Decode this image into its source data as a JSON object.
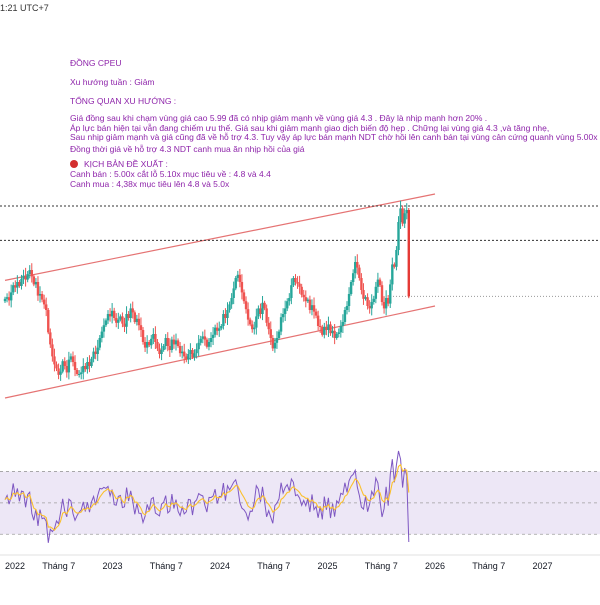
{
  "header": {
    "timestamp": "1:21 UTC+7"
  },
  "annotation": {
    "title": "ĐỒNG CPEU",
    "trend": "Xu hướng tuần : Giảm",
    "overview_title": "TỔNG QUAN XU HƯỚNG :",
    "overview_lines": [
      "Giá đồng sau khi chạm vùng giá cao 5.99 đã có nhịp giảm mạnh về vùng giá 4.3 . Đây là nhịp mạnh hơn 20% .",
      " Áp lực bán hiện tại vẫn đang chiếm ưu thế. Giá sau khi giảm mạnh giao dịch biến độ hẹp . Chững lại vùng giá 4.3 ,và tăng nhẹ,",
      " Sau nhịp giảm mạnh và giá cũng đã về hỗ trợ 4.3. Tuy vậy áp lực bán mạnh NDT chờ hồi lên canh bán tại vùng cản cứng quanh vùng 5.00x"
    ],
    "support_note": "Đồng thời giá về hỗ trợ 4.3 NDT canh mua ăn nhịp hồi của giá",
    "scenario_title": "KỊCH BẢN ĐỀ XUẤT :",
    "scenario_lines": [
      "Canh bán : 5.00x cắt lỗ 5.10x mục tiêu về : 4.8 và 4.4",
      "Canh mua : 4,38x  mục tiêu lên 4.8 và 5.0x"
    ]
  },
  "colors": {
    "up": "#26a69a",
    "down": "#ef5350",
    "channel": "#e57373",
    "rsi": "#7e57c2",
    "rsi_ma": "#fbc02d",
    "rsi_band": "#ede7f6",
    "text": "#8e24aa",
    "last_bar": "#e53935"
  },
  "chart_data": [
    {
      "type": "candlestick",
      "title": "",
      "xlabel": "",
      "ylabel": "",
      "x_ticks": [
        "2022",
        "Tháng 7",
        "2023",
        "Tháng 7",
        "2024",
        "Tháng 7",
        "2025",
        "Tháng 7",
        "2026",
        "Tháng 7",
        "2027"
      ],
      "x_range": [
        "2022-01",
        "2027-06"
      ],
      "y_range": [
        3.35,
        6.1
      ],
      "grid": false,
      "channel": {
        "upper": [
          [
            "2022-01",
            4.97
          ],
          [
            "2026-01",
            6.05
          ]
        ],
        "lower": [
          [
            "2022-01",
            3.5
          ],
          [
            "2026-01",
            4.65
          ]
        ]
      },
      "horizontal_levels": [
        5.9,
        5.47,
        4.77
      ],
      "candles": {
        "start": "2022-01",
        "interval": "week",
        "close": [
          4.74,
          4.76,
          4.72,
          4.82,
          4.91,
          4.88,
          4.95,
          4.9,
          4.99,
          5.03,
          4.98,
          5.05,
          5.1,
          5.02,
          4.92,
          4.95,
          4.78,
          4.8,
          4.73,
          4.67,
          4.6,
          4.32,
          4.17,
          4.02,
          3.92,
          3.87,
          3.79,
          3.83,
          3.96,
          3.9,
          3.82,
          3.98,
          4.02,
          3.95,
          3.85,
          3.8,
          3.8,
          3.82,
          3.9,
          3.86,
          3.95,
          3.9,
          3.99,
          4.08,
          4.05,
          4.13,
          4.25,
          4.33,
          4.41,
          4.47,
          4.55,
          4.52,
          4.59,
          4.5,
          4.44,
          4.48,
          4.52,
          4.43,
          4.39,
          4.55,
          4.5,
          4.62,
          4.57,
          4.45,
          4.49,
          4.41,
          4.35,
          4.2,
          4.13,
          4.2,
          4.16,
          4.24,
          4.3,
          4.2,
          4.12,
          4.05,
          4.1,
          4.15,
          4.25,
          4.15,
          4.1,
          4.23,
          4.17,
          4.22,
          4.15,
          4.06,
          4.08,
          4.02,
          3.98,
          4.05,
          4.1,
          4.01,
          4.06,
          4.11,
          4.19,
          4.24,
          4.27,
          4.23,
          4.14,
          4.2,
          4.25,
          4.29,
          4.38,
          4.34,
          4.37,
          4.4,
          4.55,
          4.5,
          4.6,
          4.67,
          4.75,
          4.87,
          5.0,
          5.04,
          4.95,
          4.82,
          4.71,
          4.61,
          4.48,
          4.42,
          4.36,
          4.38,
          4.52,
          4.62,
          4.55,
          4.69,
          4.62,
          4.44,
          4.36,
          4.25,
          4.12,
          4.19,
          4.25,
          4.33,
          4.51,
          4.55,
          4.62,
          4.71,
          4.75,
          4.91,
          5.0,
          4.95,
          4.93,
          4.89,
          4.79,
          4.76,
          4.71,
          4.73,
          4.6,
          4.66,
          4.58,
          4.53,
          4.4,
          4.39,
          4.29,
          4.39,
          4.35,
          4.42,
          4.31,
          4.34,
          4.25,
          4.3,
          4.32,
          4.4,
          4.45,
          4.6,
          4.65,
          4.8,
          4.95,
          5.06,
          5.2,
          5.13,
          5.0,
          4.85,
          4.74,
          4.76,
          4.65,
          4.62,
          4.7,
          4.74,
          4.89,
          4.98,
          4.91,
          4.7,
          4.62,
          4.75,
          4.68,
          4.92,
          5.17,
          5.14,
          5.35,
          5.7,
          5.87,
          5.68,
          5.81,
          5.85,
          4.77
        ]
      }
    },
    {
      "type": "line",
      "title": "",
      "xlabel": "",
      "ylabel": "",
      "y_range": [
        20,
        90
      ],
      "band": [
        30,
        70
      ],
      "levels": [
        70,
        50,
        30
      ],
      "series": [
        {
          "name": "",
          "values": [
            52.1,
            54.7,
            49.2,
            53.9,
            62.3,
            53.9,
            59.2,
            51.0,
            57.5,
            57.0,
            47.2,
            55.3,
            56.8,
            43.3,
            38.9,
            46.0,
            35.3,
            45.7,
            39.9,
            40.4,
            38.3,
            24.6,
            33.2,
            31.7,
            33.4,
            38.5,
            36.7,
            44.0,
            52.6,
            44.8,
            41.1,
            52.3,
            51.2,
            43.1,
            38.9,
            41.9,
            44.1,
            45.5,
            50.6,
            44.5,
            50.4,
            44.1,
            50.7,
            54.1,
            48.6,
            54.7,
            59.2,
            58.9,
            59.9,
            59.2,
            60.4,
            54.4,
            58.5,
            48.9,
            48.5,
            54.1,
            54.7,
            47.0,
            47.5,
            59.7,
            51.2,
            57.6,
            51.1,
            42.7,
            49.6,
            43.4,
            43.3,
            37.5,
            41.5,
            49.0,
            45.0,
            52.5,
            53.4,
            43.5,
            42.6,
            41.7,
            49.3,
            50.3,
            54.6,
            43.6,
            44.8,
            55.6,
            46.4,
            52.1,
            44.6,
            41.9,
            47.4,
            43.0,
            44.3,
            52.2,
            51.9,
            42.3,
            50.5,
            51.9,
            55.9,
            55.0,
            54.4,
            48.6,
            44.1,
            53.5,
            53.4,
            54.3,
            58.7,
            49.5,
            54.1,
            54.0,
            62.6,
            51.4,
            60.9,
            58.3,
            60.6,
            63.2,
            64.7,
            59.6,
            50.0,
            46.6,
            45.6,
            43.6,
            39.2,
            44.7,
            44.6,
            50.6,
            60.9,
            58.6,
            50.7,
            60.2,
            50.7,
            41.1,
            45.0,
            40.8,
            37.0,
            48.3,
            49.8,
            52.5,
            62.8,
            56.3,
            59.8,
            61.6,
            57.6,
            65.2,
            63.1,
            54.6,
            55.2,
            53.0,
            48.4,
            51.5,
            48.2,
            52.8,
            44.2,
            55.4,
            45.7,
            47.7,
            40.5,
            47.8,
            39.5,
            54.0,
            45.6,
            53.2,
            40.3,
            49.5,
            41.2,
            51.3,
            49.8,
            56.1,
            55.3,
            62.8,
            56.7,
            64.0,
            66.9,
            68.1,
            70.7,
            60.1,
            54.6,
            47.3,
            46.0,
            54.1,
            44.4,
            49.4,
            57.3,
            54.6,
            65.8,
            62.7,
            51.4,
            41.0,
            46.3,
            60.2,
            48.2,
            68.2,
            77.8,
            63.1,
            74.1,
            83.0,
            77.7,
            59.7,
            72.2,
            67.2,
            25.1
          ]
        },
        {
          "name": "",
          "values": [
            52.1,
            53.5,
            52.1,
            52.6,
            56.2,
            55.5,
            56.6,
            55.0,
            55.8,
            56.4,
            53.5,
            53.7,
            55.2,
            50.7,
            46.6,
            45.8,
            42.4,
            43.3,
            42.0,
            41.7,
            40.6,
            34.6,
            34.7,
            33.8,
            32.6,
            34.3,
            35.5,
            38.4,
            43.5,
            44.1,
            43.0,
            45.5,
            47.5,
            46.4,
            44.4,
            43.4,
            43.7,
            44.2,
            46.2,
            45.5,
            46.9,
            46.0,
            47.3,
            49.3,
            49.2,
            50.9,
            53.6,
            55.4,
            57.1,
            57.9,
            59.0,
            57.5,
            57.9,
            55.0,
            52.6,
            53.1,
            53.8,
            51.2,
            50.0,
            53.6,
            53.2,
            54.7,
            53.9,
            50.4,
            50.4,
            48.5,
            46.4,
            43.3,
            42.4,
            44.4,
            44.6,
            47.0,
            49.1,
            47.5,
            46.0,
            44.8,
            45.9,
            47.0,
            49.4,
            47.9,
            47.4,
            49.9,
            49.0,
            50.1,
            48.8,
            47.2,
            47.3,
            46.2,
            45.7,
            47.8,
            49.0,
            47.6,
            48.3,
            49.3,
            51.0,
            52.0,
            52.7,
            51.4,
            49.6,
            50.7,
            51.4,
            52.3,
            54.5,
            53.2,
            53.5,
            53.6,
            56.4,
            55.0,
            56.7,
            57.1,
            58.1,
            59.5,
            61.0,
            60.7,
            58.0,
            55.6,
            53.4,
            51.0,
            47.9,
            46.9,
            46.3,
            47.3,
            51.2,
            52.9,
            52.4,
            54.5,
            53.5,
            50.4,
            49.1,
            46.9,
            44.2,
            45.2,
            46.2,
            47.6,
            52.2,
            53.1,
            54.8,
            56.6,
            56.9,
            59.3,
            60.3,
            58.9,
            58.0,
            56.6,
            54.5,
            54.0,
            52.9,
            52.9,
            50.6,
            51.9,
            50.4,
            49.9,
            47.2,
            47.5,
            45.1,
            47.8,
            47.3,
            48.8,
            46.5,
            47.3,
            45.6,
            47.2,
            47.7,
            50.0,
            50.9,
            54.2,
            55.1,
            57.8,
            60.6,
            62.8,
            65.3,
            64.2,
            61.9,
            58.3,
            55.0,
            54.6,
            51.9,
            51.3,
            52.6,
            53.2,
            56.4,
            58.1,
            56.4,
            51.8,
            50.5,
            53.2,
            51.8,
            56.8,
            62.9,
            64.0,
            67.3,
            73.2,
            74.3,
            70.2,
            71.1,
            70.8,
            56.5
          ]
        }
      ]
    }
  ]
}
